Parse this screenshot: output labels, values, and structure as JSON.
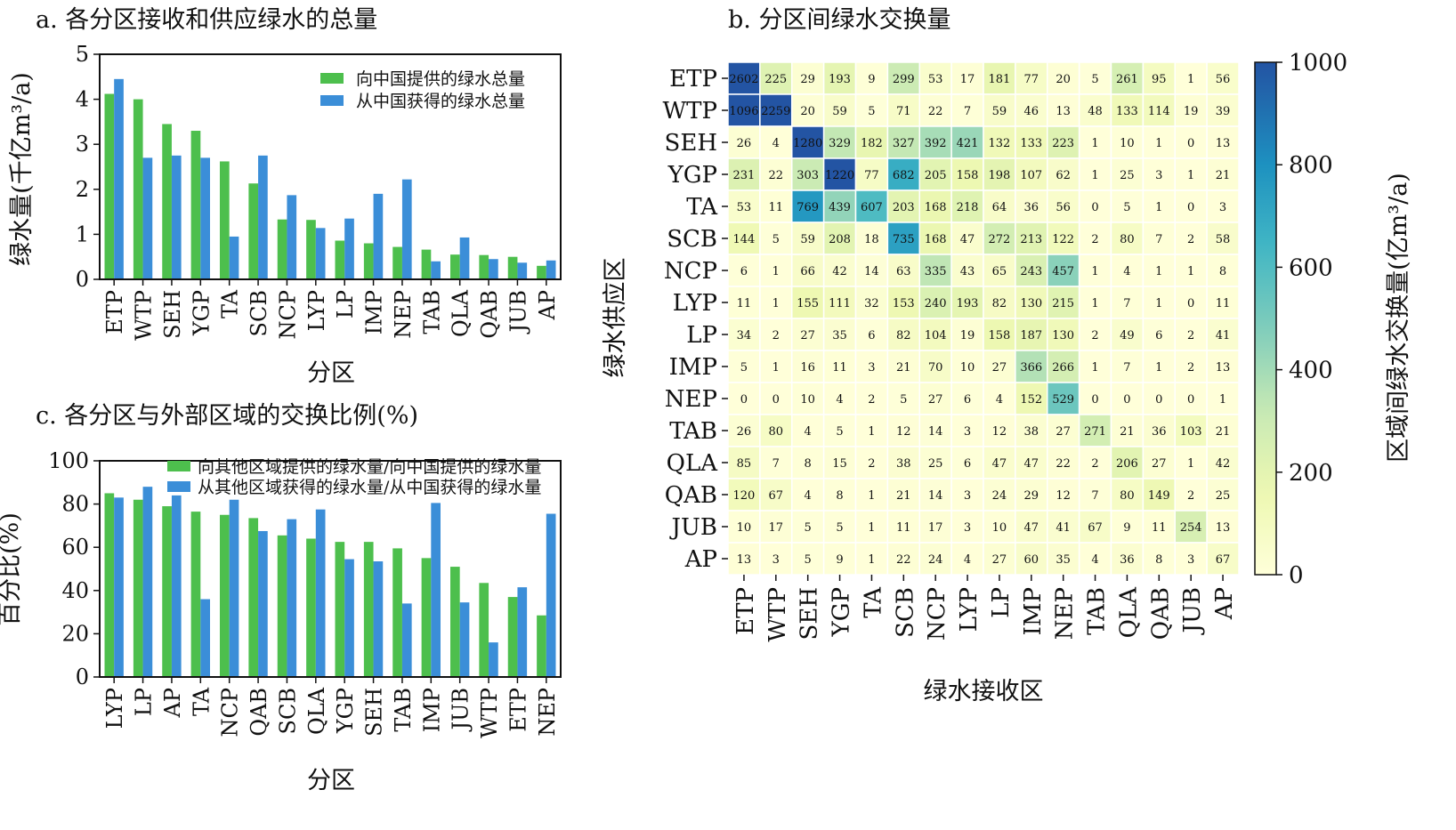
{
  "colors": {
    "green": "#4dbf4d",
    "blue": "#3b8ed8"
  },
  "chart_data": [
    {
      "type": "bar",
      "title": "a. 各分区接收和供应绿水的总量",
      "xlabel": "分区",
      "ylabel": "绿水量(千亿m³/a)",
      "ylim": [
        0,
        5
      ],
      "yticks": [
        "0",
        "1",
        "2",
        "3",
        "4",
        "5"
      ],
      "categories": [
        "ETP",
        "WTP",
        "SEH",
        "YGP",
        "TA",
        "SCB",
        "NCP",
        "LYP",
        "LP",
        "IMP",
        "NEP",
        "TAB",
        "QLA",
        "QAB",
        "JUB",
        "AP"
      ],
      "series": [
        {
          "name": "向中国提供的绿水总量",
          "color": "#4dbf4d",
          "values": [
            4.12,
            4.0,
            3.45,
            3.3,
            2.62,
            2.13,
            1.33,
            1.32,
            0.86,
            0.8,
            0.72,
            0.66,
            0.55,
            0.54,
            0.5,
            0.3
          ]
        },
        {
          "name": "从中国获得的绿水总量",
          "color": "#3b8ed8",
          "values": [
            4.45,
            2.7,
            2.75,
            2.7,
            0.95,
            2.75,
            1.87,
            1.14,
            1.35,
            1.9,
            2.22,
            0.4,
            0.93,
            0.45,
            0.37,
            0.42
          ]
        }
      ],
      "legend": "top-right",
      "grid": false
    },
    {
      "type": "heatmap",
      "title": "b. 分区间绿水交换量",
      "xlabel": "绿水接收区",
      "ylabel": "绿水供应区",
      "rows": [
        "ETP",
        "WTP",
        "SEH",
        "YGP",
        "TA",
        "SCB",
        "NCP",
        "LYP",
        "LP",
        "IMP",
        "NEP",
        "TAB",
        "QLA",
        "QAB",
        "JUB",
        "AP"
      ],
      "cols": [
        "ETP",
        "WTP",
        "SEH",
        "YGP",
        "TA",
        "SCB",
        "NCP",
        "LYP",
        "LP",
        "IMP",
        "NEP",
        "TAB",
        "QLA",
        "QAB",
        "JUB",
        "AP"
      ],
      "values": [
        [
          2602,
          225,
          29,
          193,
          9,
          299,
          53,
          17,
          181,
          77,
          20,
          5,
          261,
          95,
          1,
          56
        ],
        [
          1096,
          2259,
          20,
          59,
          5,
          71,
          22,
          7,
          59,
          46,
          13,
          48,
          133,
          114,
          19,
          39
        ],
        [
          26,
          4,
          1280,
          329,
          182,
          327,
          392,
          421,
          132,
          133,
          223,
          1,
          10,
          1,
          0,
          13
        ],
        [
          231,
          22,
          303,
          1220,
          77,
          682,
          205,
          158,
          198,
          107,
          62,
          1,
          25,
          3,
          1,
          21
        ],
        [
          53,
          11,
          769,
          439,
          607,
          203,
          168,
          218,
          64,
          36,
          56,
          0,
          5,
          1,
          0,
          3
        ],
        [
          144,
          5,
          59,
          208,
          18,
          735,
          168,
          47,
          272,
          213,
          122,
          2,
          80,
          7,
          2,
          58
        ],
        [
          6,
          1,
          66,
          42,
          14,
          63,
          335,
          43,
          65,
          243,
          457,
          1,
          4,
          1,
          1,
          8
        ],
        [
          11,
          1,
          155,
          111,
          32,
          153,
          240,
          193,
          82,
          130,
          215,
          1,
          7,
          1,
          0,
          11
        ],
        [
          34,
          2,
          27,
          35,
          6,
          82,
          104,
          19,
          158,
          187,
          130,
          2,
          49,
          6,
          2,
          41
        ],
        [
          5,
          1,
          16,
          11,
          3,
          21,
          70,
          10,
          27,
          366,
          266,
          1,
          7,
          1,
          2,
          13
        ],
        [
          0,
          0,
          10,
          4,
          2,
          5,
          27,
          6,
          4,
          152,
          529,
          0,
          0,
          0,
          0,
          1
        ],
        [
          26,
          80,
          4,
          5,
          1,
          12,
          14,
          3,
          12,
          38,
          27,
          271,
          21,
          36,
          103,
          21
        ],
        [
          85,
          7,
          8,
          15,
          2,
          38,
          25,
          6,
          47,
          47,
          22,
          2,
          206,
          27,
          1,
          42
        ],
        [
          120,
          67,
          4,
          8,
          1,
          21,
          14,
          3,
          24,
          29,
          12,
          7,
          80,
          149,
          2,
          25
        ],
        [
          10,
          17,
          5,
          5,
          1,
          11,
          17,
          3,
          10,
          47,
          41,
          67,
          9,
          11,
          254,
          13
        ],
        [
          13,
          3,
          5,
          9,
          1,
          22,
          24,
          4,
          27,
          60,
          35,
          4,
          36,
          8,
          3,
          67
        ]
      ],
      "colorbar": {
        "label": "区域间绿水交换量(亿m³/a)",
        "range": [
          0,
          1000
        ],
        "ticks": [
          "0",
          "200",
          "400",
          "600",
          "800",
          "1000"
        ],
        "palette": "YlGnBu"
      }
    },
    {
      "type": "bar",
      "title": "c. 各分区与外部区域的交换比例(%)",
      "xlabel": "分区",
      "ylabel": "百分比(%)",
      "ylim": [
        0,
        100
      ],
      "yticks": [
        "0",
        "20",
        "40",
        "60",
        "80",
        "100"
      ],
      "categories": [
        "LYP",
        "LP",
        "AP",
        "TA",
        "NCP",
        "QAB",
        "SCB",
        "QLA",
        "YGP",
        "SEH",
        "TAB",
        "IMP",
        "JUB",
        "WTP",
        "ETP",
        "NEP"
      ],
      "series": [
        {
          "name": "向其他区域提供的绿水量/向中国提供的绿水量",
          "color": "#4dbf4d",
          "values": [
            85,
            82,
            79,
            76.5,
            75,
            73.5,
            65.5,
            64,
            62.5,
            62.5,
            59.5,
            55,
            51,
            43.5,
            37,
            28.5
          ]
        },
        {
          "name": "从其他区域获得的绿水量/从中国获得的绿水量",
          "color": "#3b8ed8",
          "values": [
            83,
            88,
            84,
            36,
            82,
            67.5,
            73,
            77.5,
            54.5,
            53.5,
            34,
            80.5,
            34.5,
            16,
            41.5,
            75.5
          ]
        }
      ],
      "legend": "top-right",
      "grid": false
    }
  ]
}
